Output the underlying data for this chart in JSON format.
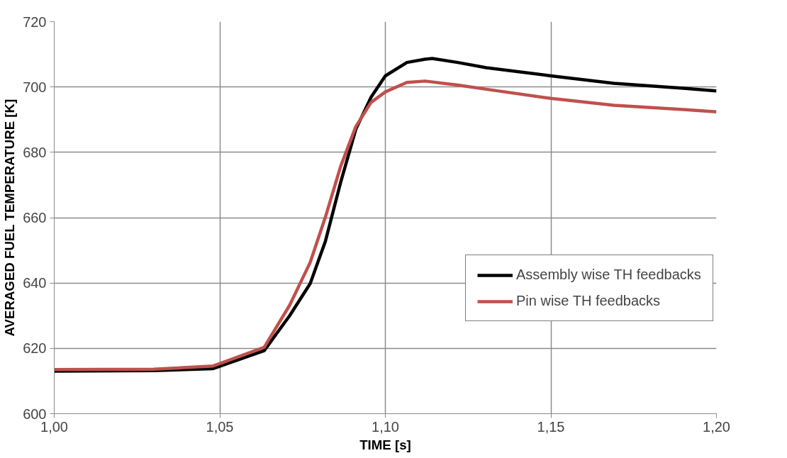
{
  "chart_data": {
    "type": "line",
    "xlabel": "TIME [s]",
    "ylabel": "AVERAGED FUEL TEMPERATURE [K]",
    "xlim": [
      1.0,
      1.2
    ],
    "ylim": [
      600,
      720
    ],
    "xticks": [
      {
        "value": 1.0,
        "label": "1,00"
      },
      {
        "value": 1.05,
        "label": "1,05"
      },
      {
        "value": 1.1,
        "label": "1,10"
      },
      {
        "value": 1.15,
        "label": "1,15"
      },
      {
        "value": 1.2,
        "label": "1,20"
      }
    ],
    "yticks": [
      600,
      620,
      640,
      660,
      680,
      700,
      720
    ],
    "grid": true,
    "legend": "right",
    "marker": "none",
    "line_style": "solid",
    "series": [
      {
        "name": "Assembly wise TH feedbacks",
        "color": "#000000",
        "x": [
          1.0,
          1.03,
          1.048,
          1.0634,
          1.0711,
          1.0773,
          1.0819,
          1.0865,
          1.0911,
          1.0957,
          1.1,
          1.1065,
          1.112,
          1.1142,
          1.1219,
          1.1305,
          1.15,
          1.169,
          1.19,
          1.2
        ],
        "values": [
          613.0,
          613.2,
          613.8,
          619.3,
          630.0,
          639.8,
          652.8,
          670.8,
          687.1,
          696.9,
          703.4,
          707.5,
          708.5,
          708.7,
          707.5,
          705.9,
          703.4,
          701.1,
          699.6,
          698.8
        ]
      },
      {
        "name": "Pin wise TH feedbacks",
        "color": "#c0504d",
        "x": [
          1.0,
          1.03,
          1.048,
          1.0634,
          1.0711,
          1.0773,
          1.0819,
          1.0865,
          1.0911,
          1.0957,
          1.1,
          1.1065,
          1.112,
          1.1219,
          1.1305,
          1.15,
          1.169,
          1.19,
          1.2
        ],
        "values": [
          613.5,
          613.6,
          614.6,
          620.3,
          633.2,
          646.3,
          660.2,
          675.7,
          687.9,
          695.3,
          698.5,
          701.4,
          701.8,
          700.6,
          699.3,
          696.5,
          694.4,
          693.1,
          692.4
        ]
      }
    ]
  }
}
